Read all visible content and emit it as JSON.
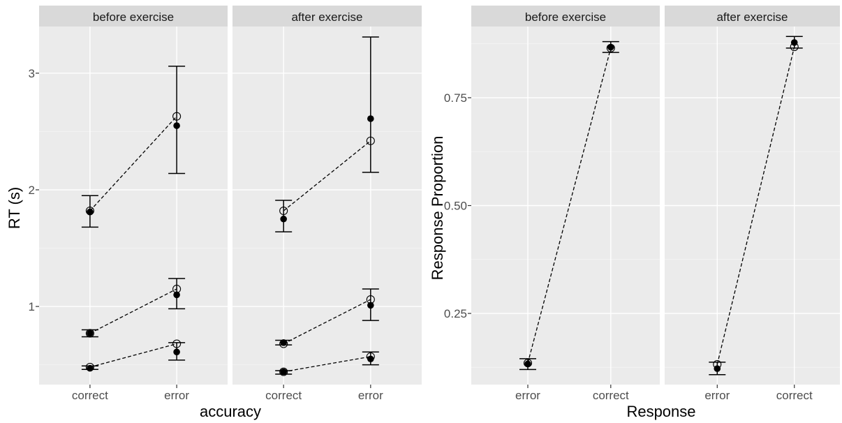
{
  "chart_data": [
    {
      "type": "scatter",
      "xlabel": "accuracy",
      "ylabel": "RT (s)",
      "ylim": [
        0.33,
        3.4
      ],
      "yticks": [
        1,
        2,
        3
      ],
      "categories": [
        "correct",
        "error"
      ],
      "panels": [
        {
          "strip": "before exercise",
          "groups": [
            {
              "open": [
                1.82,
                2.63
              ],
              "filled": [
                1.81,
                2.55
              ],
              "err_low": [
                1.68,
                2.14
              ],
              "err_high": [
                1.95,
                3.06
              ]
            },
            {
              "open": [
                0.77,
                1.15
              ],
              "filled": [
                0.77,
                1.1
              ],
              "err_low": [
                0.74,
                0.98
              ],
              "err_high": [
                0.8,
                1.24
              ]
            },
            {
              "open": [
                0.48,
                0.68
              ],
              "filled": [
                0.47,
                0.61
              ],
              "err_low": [
                0.46,
                0.54
              ],
              "err_high": [
                0.49,
                0.69
              ]
            }
          ]
        },
        {
          "strip": "after exercise",
          "groups": [
            {
              "open": [
                1.82,
                2.42
              ],
              "filled": [
                1.75,
                2.61
              ],
              "err_low": [
                1.64,
                2.15
              ],
              "err_high": [
                1.91,
                3.31
              ]
            },
            {
              "open": [
                0.68,
                1.06
              ],
              "filled": [
                0.69,
                1.01
              ],
              "err_low": [
                0.67,
                0.88
              ],
              "err_high": [
                0.71,
                1.15
              ]
            },
            {
              "open": [
                0.44,
                0.57
              ],
              "filled": [
                0.44,
                0.55
              ],
              "err_low": [
                0.42,
                0.5
              ],
              "err_high": [
                0.45,
                0.61
              ]
            }
          ]
        }
      ]
    },
    {
      "type": "scatter",
      "xlabel": "Response",
      "ylabel": "Response Proportion",
      "ylim": [
        0.085,
        0.915
      ],
      "yticks": [
        0.25,
        0.5,
        0.75
      ],
      "ytick_labels": [
        "0.25",
        "0.50",
        "0.75"
      ],
      "categories": [
        "error",
        "correct"
      ],
      "panels": [
        {
          "strip": "before exercise",
          "groups": [
            {
              "open": [
                0.135,
                0.865
              ],
              "filled": [
                0.133,
                0.867
              ],
              "err_low": [
                0.12,
                0.855
              ],
              "err_high": [
                0.145,
                0.88
              ]
            }
          ]
        },
        {
          "strip": "after exercise",
          "groups": [
            {
              "open": [
                0.132,
                0.868
              ],
              "filled": [
                0.122,
                0.878
              ],
              "err_low": [
                0.108,
                0.865
              ],
              "err_high": [
                0.137,
                0.892
              ]
            }
          ]
        }
      ]
    }
  ]
}
